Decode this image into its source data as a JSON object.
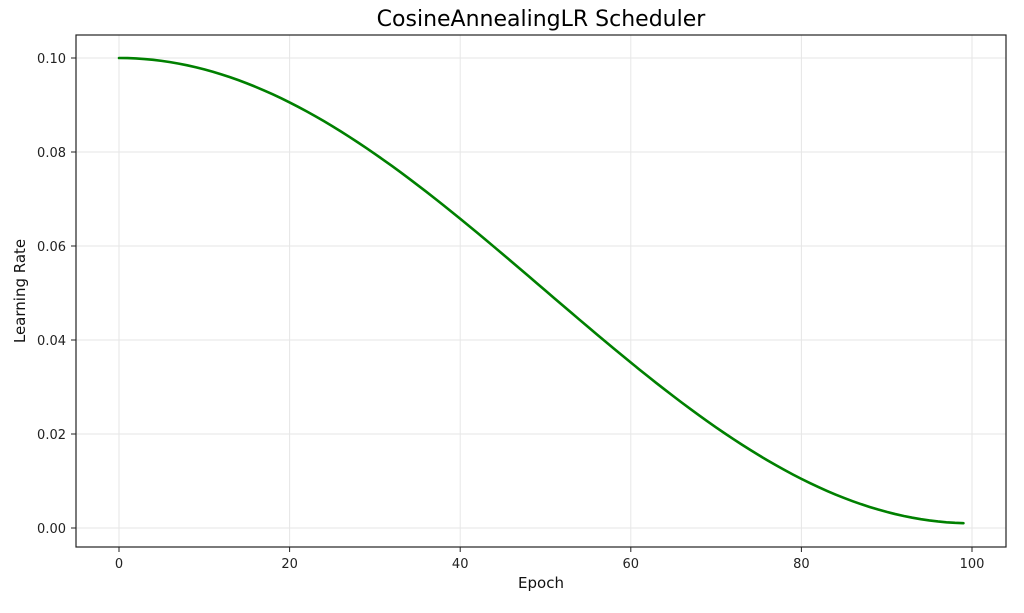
{
  "chart_data": {
    "type": "line",
    "title": "CosineAnnealingLR Scheduler",
    "xlabel": "Epoch",
    "ylabel": "Learning Rate",
    "xlim": [
      -5,
      104
    ],
    "ylim": [
      -0.004,
      0.105
    ],
    "xticks": [
      0,
      20,
      40,
      60,
      80,
      100
    ],
    "xtick_labels": [
      "0",
      "20",
      "40",
      "60",
      "80",
      "100"
    ],
    "yticks": [
      0.0,
      0.02,
      0.04,
      0.06,
      0.08,
      0.1
    ],
    "ytick_labels": [
      "0.00",
      "0.02",
      "0.04",
      "0.06",
      "0.08",
      "0.10"
    ],
    "grid": true,
    "legend": null,
    "series": [
      {
        "name": "learning_rate",
        "color": "#008000",
        "formula": "0.001 + 0.0495*(1+cos(pi*epoch/100))",
        "x": [
          0,
          5,
          10,
          15,
          20,
          25,
          30,
          35,
          40,
          45,
          50,
          55,
          60,
          65,
          70,
          75,
          80,
          85,
          90,
          95,
          99
        ],
        "values": [
          0.1,
          0.0994,
          0.0976,
          0.0946,
          0.0905,
          0.0855,
          0.0796,
          0.0729,
          0.0658,
          0.0583,
          0.0505,
          0.0427,
          0.0352,
          0.0281,
          0.0214,
          0.0155,
          0.0105,
          0.0064,
          0.0034,
          0.0016,
          0.001
        ]
      }
    ]
  }
}
